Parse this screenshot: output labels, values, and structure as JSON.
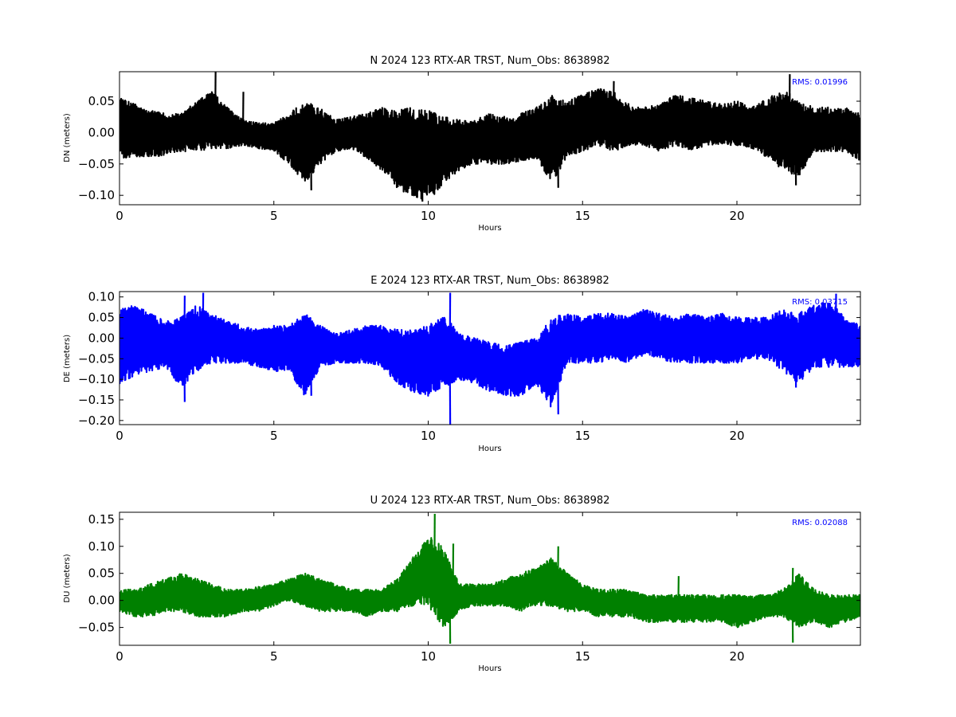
{
  "figure": {
    "background": "#ffffff",
    "text_color": "#000000",
    "rms_color": "#0000ff"
  },
  "chart_data": [
    {
      "id": "n",
      "type": "line",
      "title": "N 2024 123 RTX-AR  TRST, Num_Obs: 8638982",
      "xlabel": "Hours",
      "ylabel": "DN (meters)",
      "xlim": [
        0,
        24
      ],
      "ylim": [
        -0.115,
        0.097
      ],
      "xticks": [
        0,
        5,
        10,
        15,
        20
      ],
      "xtick_labels": [
        "0",
        "5",
        "10",
        "15",
        "20"
      ],
      "yticks": [
        -0.1,
        -0.05,
        0.0,
        0.05
      ],
      "ytick_labels": [
        "−0.10",
        "−0.05",
        "0.00",
        "0.05"
      ],
      "color": "#000000",
      "annotation": "RMS:  0.01996",
      "envelope": {
        "x": [
          0,
          0.5,
          1,
          1.5,
          2,
          2.5,
          3,
          3.5,
          4,
          4.5,
          5,
          5.5,
          6,
          6.5,
          7,
          7.5,
          8,
          8.5,
          9,
          9.5,
          10,
          10.5,
          11,
          11.5,
          12,
          12.5,
          13,
          13.5,
          14,
          14.5,
          15,
          15.5,
          16,
          16.5,
          17,
          17.5,
          18,
          18.5,
          19,
          19.5,
          20,
          20.5,
          21,
          21.5,
          22,
          22.5,
          23,
          23.5,
          24
        ],
        "upper": [
          0.055,
          0.045,
          0.035,
          0.03,
          0.03,
          0.05,
          0.065,
          0.04,
          0.02,
          0.015,
          0.015,
          0.03,
          0.05,
          0.04,
          0.02,
          0.025,
          0.03,
          0.04,
          0.035,
          0.04,
          0.035,
          0.025,
          0.02,
          0.02,
          0.03,
          0.025,
          0.03,
          0.04,
          0.06,
          0.05,
          0.06,
          0.07,
          0.065,
          0.045,
          0.04,
          0.045,
          0.06,
          0.055,
          0.05,
          0.045,
          0.05,
          0.04,
          0.055,
          0.07,
          0.05,
          0.04,
          0.04,
          0.04,
          0.03
        ],
        "lower": [
          -0.04,
          -0.04,
          -0.04,
          -0.035,
          -0.03,
          -0.03,
          -0.025,
          -0.025,
          -0.02,
          -0.025,
          -0.03,
          -0.05,
          -0.08,
          -0.05,
          -0.03,
          -0.025,
          -0.04,
          -0.06,
          -0.09,
          -0.1,
          -0.11,
          -0.08,
          -0.06,
          -0.05,
          -0.05,
          -0.05,
          -0.045,
          -0.04,
          -0.08,
          -0.04,
          -0.03,
          -0.02,
          -0.03,
          -0.02,
          -0.02,
          -0.03,
          -0.02,
          -0.03,
          -0.02,
          -0.02,
          -0.02,
          -0.025,
          -0.04,
          -0.06,
          -0.07,
          -0.03,
          -0.03,
          -0.03,
          -0.045
        ]
      },
      "spikes": [
        {
          "x": 3.1,
          "y": 0.097
        },
        {
          "x": 4.0,
          "y": 0.065
        },
        {
          "x": 6.2,
          "y": -0.092
        },
        {
          "x": 9.8,
          "y": -0.11
        },
        {
          "x": 14.2,
          "y": -0.088
        },
        {
          "x": 16.0,
          "y": 0.082
        },
        {
          "x": 21.7,
          "y": 0.093
        },
        {
          "x": 21.9,
          "y": -0.084
        }
      ]
    },
    {
      "id": "e",
      "type": "line",
      "title": "E 2024 123 RTX-AR  TRST, Num_Obs: 8638982",
      "xlabel": "Hours",
      "ylabel": "DE (meters)",
      "xlim": [
        0,
        24
      ],
      "ylim": [
        -0.21,
        0.113
      ],
      "xticks": [
        0,
        5,
        10,
        15,
        20
      ],
      "xtick_labels": [
        "0",
        "5",
        "10",
        "15",
        "20"
      ],
      "yticks": [
        -0.2,
        -0.15,
        -0.1,
        -0.05,
        0.0,
        0.05,
        0.1
      ],
      "ytick_labels": [
        "−0.20",
        "−0.15",
        "−0.10",
        "−0.05",
        "0.00",
        "0.05",
        "0.10"
      ],
      "color": "#0000ff",
      "annotation": "RMS:  0.03715",
      "envelope": {
        "x": [
          0,
          0.5,
          1,
          1.5,
          2,
          2.5,
          3,
          3.5,
          4,
          4.5,
          5,
          5.5,
          6,
          6.5,
          7,
          7.5,
          8,
          8.5,
          9,
          9.5,
          10,
          10.5,
          11,
          11.5,
          12,
          12.5,
          13,
          13.5,
          14,
          14.5,
          15,
          15.5,
          16,
          16.5,
          17,
          17.5,
          18,
          18.5,
          19,
          19.5,
          20,
          20.5,
          21,
          21.5,
          22,
          22.5,
          23,
          23.5,
          24
        ],
        "upper": [
          0.07,
          0.08,
          0.06,
          0.04,
          0.05,
          0.08,
          0.06,
          0.04,
          0.03,
          0.02,
          0.03,
          0.03,
          0.06,
          0.03,
          0.01,
          0.02,
          0.03,
          0.03,
          0.02,
          0.02,
          0.03,
          0.06,
          0.01,
          0.0,
          -0.01,
          -0.02,
          -0.01,
          0.0,
          0.05,
          0.06,
          0.05,
          0.06,
          0.06,
          0.05,
          0.07,
          0.06,
          0.05,
          0.06,
          0.05,
          0.06,
          0.05,
          0.05,
          0.05,
          0.07,
          0.06,
          0.08,
          0.09,
          0.05,
          0.03
        ],
        "lower": [
          -0.11,
          -0.09,
          -0.08,
          -0.07,
          -0.12,
          -0.08,
          -0.06,
          -0.06,
          -0.06,
          -0.07,
          -0.08,
          -0.08,
          -0.14,
          -0.07,
          -0.06,
          -0.06,
          -0.06,
          -0.07,
          -0.11,
          -0.13,
          -0.14,
          -0.12,
          -0.1,
          -0.11,
          -0.13,
          -0.14,
          -0.14,
          -0.11,
          -0.17,
          -0.06,
          -0.06,
          -0.06,
          -0.05,
          -0.06,
          -0.04,
          -0.05,
          -0.06,
          -0.06,
          -0.06,
          -0.06,
          -0.06,
          -0.05,
          -0.05,
          -0.08,
          -0.11,
          -0.07,
          -0.07,
          -0.07,
          -0.07
        ]
      },
      "spikes": [
        {
          "x": 2.1,
          "y": 0.103
        },
        {
          "x": 2.1,
          "y": -0.155
        },
        {
          "x": 2.7,
          "y": 0.11
        },
        {
          "x": 6.2,
          "y": -0.14
        },
        {
          "x": 10.7,
          "y": 0.11
        },
        {
          "x": 10.7,
          "y": -0.21
        },
        {
          "x": 14.2,
          "y": -0.185
        },
        {
          "x": 21.9,
          "y": -0.12
        },
        {
          "x": 23.2,
          "y": 0.108
        }
      ]
    },
    {
      "id": "u",
      "type": "line",
      "title": "U 2024 123 RTX-AR  TRST, Num_Obs: 8638982",
      "xlabel": "Hours",
      "ylabel": "DU (meters)",
      "xlim": [
        0,
        24
      ],
      "ylim": [
        -0.083,
        0.163
      ],
      "xticks": [
        0,
        5,
        10,
        15,
        20
      ],
      "xtick_labels": [
        "0",
        "5",
        "10",
        "15",
        "20"
      ],
      "yticks": [
        -0.05,
        0.0,
        0.05,
        0.1,
        0.15
      ],
      "ytick_labels": [
        "−0.05",
        "0.00",
        "0.05",
        "0.10",
        "0.15"
      ],
      "color": "#008000",
      "annotation": "RMS:  0.02088",
      "envelope": {
        "x": [
          0,
          0.5,
          1,
          1.5,
          2,
          2.5,
          3,
          3.5,
          4,
          4.5,
          5,
          5.5,
          6,
          6.5,
          7,
          7.5,
          8,
          8.5,
          9,
          9.5,
          10,
          10.5,
          11,
          11.5,
          12,
          12.5,
          13,
          13.5,
          14,
          14.5,
          15,
          15.5,
          16,
          16.5,
          17,
          17.5,
          18,
          18.5,
          19,
          19.5,
          20,
          20.5,
          21,
          21.5,
          22,
          22.5,
          23,
          23.5,
          24
        ],
        "upper": [
          0.02,
          0.02,
          0.03,
          0.04,
          0.05,
          0.04,
          0.03,
          0.02,
          0.02,
          0.025,
          0.03,
          0.04,
          0.05,
          0.04,
          0.03,
          0.02,
          0.02,
          0.02,
          0.04,
          0.08,
          0.12,
          0.1,
          0.03,
          0.03,
          0.03,
          0.04,
          0.05,
          0.06,
          0.08,
          0.05,
          0.03,
          0.02,
          0.02,
          0.02,
          0.01,
          0.01,
          0.01,
          0.01,
          0.01,
          0.01,
          0.01,
          0.01,
          0.01,
          0.02,
          0.05,
          0.02,
          0.01,
          0.01,
          0.01
        ],
        "lower": [
          -0.02,
          -0.03,
          -0.03,
          -0.02,
          -0.02,
          -0.03,
          -0.03,
          -0.03,
          -0.02,
          -0.02,
          -0.01,
          0.0,
          -0.01,
          -0.02,
          -0.02,
          -0.02,
          -0.03,
          -0.02,
          -0.02,
          -0.01,
          -0.01,
          -0.05,
          -0.02,
          -0.01,
          -0.01,
          -0.01,
          -0.02,
          -0.01,
          -0.01,
          -0.02,
          -0.02,
          -0.03,
          -0.03,
          -0.03,
          -0.04,
          -0.04,
          -0.04,
          -0.04,
          -0.04,
          -0.04,
          -0.05,
          -0.04,
          -0.03,
          -0.03,
          -0.05,
          -0.04,
          -0.05,
          -0.04,
          -0.03
        ]
      },
      "spikes": [
        {
          "x": 10.2,
          "y": 0.16
        },
        {
          "x": 10.7,
          "y": -0.08
        },
        {
          "x": 10.8,
          "y": 0.105
        },
        {
          "x": 14.2,
          "y": 0.1
        },
        {
          "x": 18.1,
          "y": 0.045
        },
        {
          "x": 21.8,
          "y": 0.06
        },
        {
          "x": 21.8,
          "y": -0.078
        }
      ]
    }
  ]
}
